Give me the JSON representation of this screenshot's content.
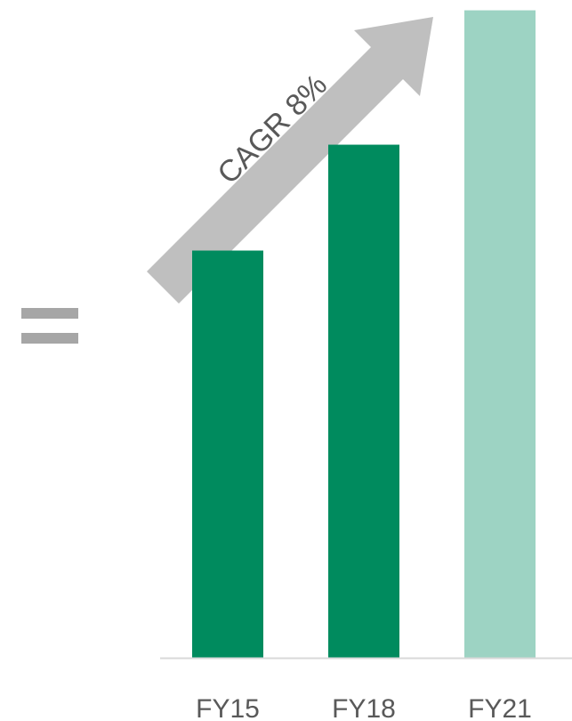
{
  "chart_data": {
    "type": "bar",
    "categories": [
      "FY15",
      "FY18",
      "FY21"
    ],
    "values": [
      100,
      126,
      159
    ],
    "ylim": [
      0,
      160
    ],
    "grid": false,
    "legend": "none",
    "annotations": [
      {
        "text": "CAGR 8%"
      }
    ],
    "colors": {
      "bars": [
        "#008B5E",
        "#008B5E",
        "#9DD3C3"
      ],
      "arrow": "#BFBFBF",
      "equals_sign": "#A6A6A6",
      "axis": "#D9D9D9",
      "text": "#595959"
    }
  }
}
